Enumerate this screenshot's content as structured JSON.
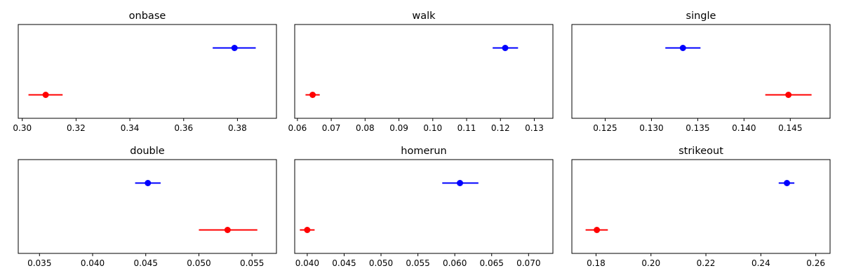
{
  "chart_data": [
    {
      "type": "errorbar",
      "title": "onbase",
      "xlim": [
        0.2985,
        0.3945
      ],
      "xticks": [
        0.3,
        0.32,
        0.34,
        0.36,
        0.38
      ],
      "xtick_labels": [
        "0.30",
        "0.32",
        "0.34",
        "0.36",
        "0.38"
      ],
      "series": [
        {
          "color": "#0000ff",
          "value": 0.3789,
          "lower": 0.3708,
          "upper": 0.3868
        },
        {
          "color": "#ff0000",
          "value": 0.3087,
          "lower": 0.3023,
          "upper": 0.315
        }
      ]
    },
    {
      "type": "errorbar",
      "title": "walk",
      "xlim": [
        0.0592,
        0.1355
      ],
      "xticks": [
        0.06,
        0.07,
        0.08,
        0.09,
        0.1,
        0.11,
        0.12,
        0.13
      ],
      "xtick_labels": [
        "0.06",
        "0.07",
        "0.08",
        "0.09",
        "0.10",
        "0.11",
        "0.12",
        "0.13"
      ],
      "series": [
        {
          "color": "#0000ff",
          "value": 0.1214,
          "lower": 0.1177,
          "upper": 0.1252
        },
        {
          "color": "#ff0000",
          "value": 0.0645,
          "lower": 0.0624,
          "upper": 0.0666
        }
      ]
    },
    {
      "type": "errorbar",
      "title": "single",
      "xlim": [
        0.1214,
        0.1493
      ],
      "xticks": [
        0.125,
        0.13,
        0.135,
        0.14,
        0.145
      ],
      "xtick_labels": [
        "0.125",
        "0.130",
        "0.135",
        "0.140",
        "0.145"
      ],
      "series": [
        {
          "color": "#0000ff",
          "value": 0.1334,
          "lower": 0.1315,
          "upper": 0.1353
        },
        {
          "color": "#ff0000",
          "value": 0.1448,
          "lower": 0.1423,
          "upper": 0.1473
        }
      ]
    },
    {
      "type": "errorbar",
      "title": "double",
      "xlim": [
        0.033,
        0.0573
      ],
      "xticks": [
        0.035,
        0.04,
        0.045,
        0.05,
        0.055
      ],
      "xtick_labels": [
        "0.035",
        "0.040",
        "0.045",
        "0.050",
        "0.055"
      ],
      "series": [
        {
          "color": "#0000ff",
          "value": 0.0452,
          "lower": 0.044,
          "upper": 0.0464
        },
        {
          "color": "#ff0000",
          "value": 0.0527,
          "lower": 0.05,
          "upper": 0.0555
        }
      ]
    },
    {
      "type": "errorbar",
      "title": "homerun",
      "xlim": [
        0.0383,
        0.0733
      ],
      "xticks": [
        0.04,
        0.045,
        0.05,
        0.055,
        0.06,
        0.065,
        0.07
      ],
      "xtick_labels": [
        "0.040",
        "0.045",
        "0.050",
        "0.055",
        "0.060",
        "0.065",
        "0.070"
      ],
      "series": [
        {
          "color": "#0000ff",
          "value": 0.0607,
          "lower": 0.0583,
          "upper": 0.0632
        },
        {
          "color": "#ff0000",
          "value": 0.04,
          "lower": 0.039,
          "upper": 0.041
        }
      ]
    },
    {
      "type": "errorbar",
      "title": "strikeout",
      "xlim": [
        0.1712,
        0.2652
      ],
      "xticks": [
        0.18,
        0.2,
        0.22,
        0.24,
        0.26
      ],
      "xtick_labels": [
        "0.18",
        "0.20",
        "0.22",
        "0.24",
        "0.26"
      ],
      "series": [
        {
          "color": "#0000ff",
          "value": 0.2495,
          "lower": 0.2465,
          "upper": 0.2522
        },
        {
          "color": "#ff0000",
          "value": 0.1803,
          "lower": 0.1762,
          "upper": 0.1843
        }
      ]
    }
  ]
}
